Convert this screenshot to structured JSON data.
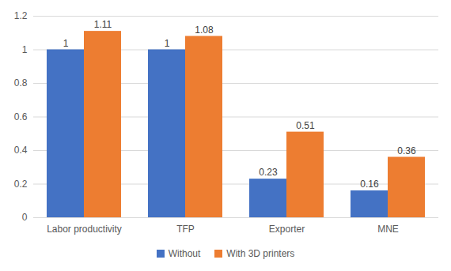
{
  "chart_data": {
    "type": "bar",
    "categories": [
      "Labor productivity",
      "TFP",
      "Exporter",
      "MNE"
    ],
    "series": [
      {
        "name": "Without",
        "color": "#4472C4",
        "values": [
          1,
          1,
          0.23,
          0.16
        ]
      },
      {
        "name": "With 3D printers",
        "color": "#ED7D31",
        "values": [
          1.11,
          1.08,
          0.51,
          0.36
        ]
      }
    ],
    "ylim": [
      0,
      1.2
    ],
    "yticks": [
      0,
      0.2,
      0.4,
      0.6,
      0.8,
      1,
      1.2
    ],
    "grid": true,
    "data_labels": true,
    "legend": "bottom"
  }
}
